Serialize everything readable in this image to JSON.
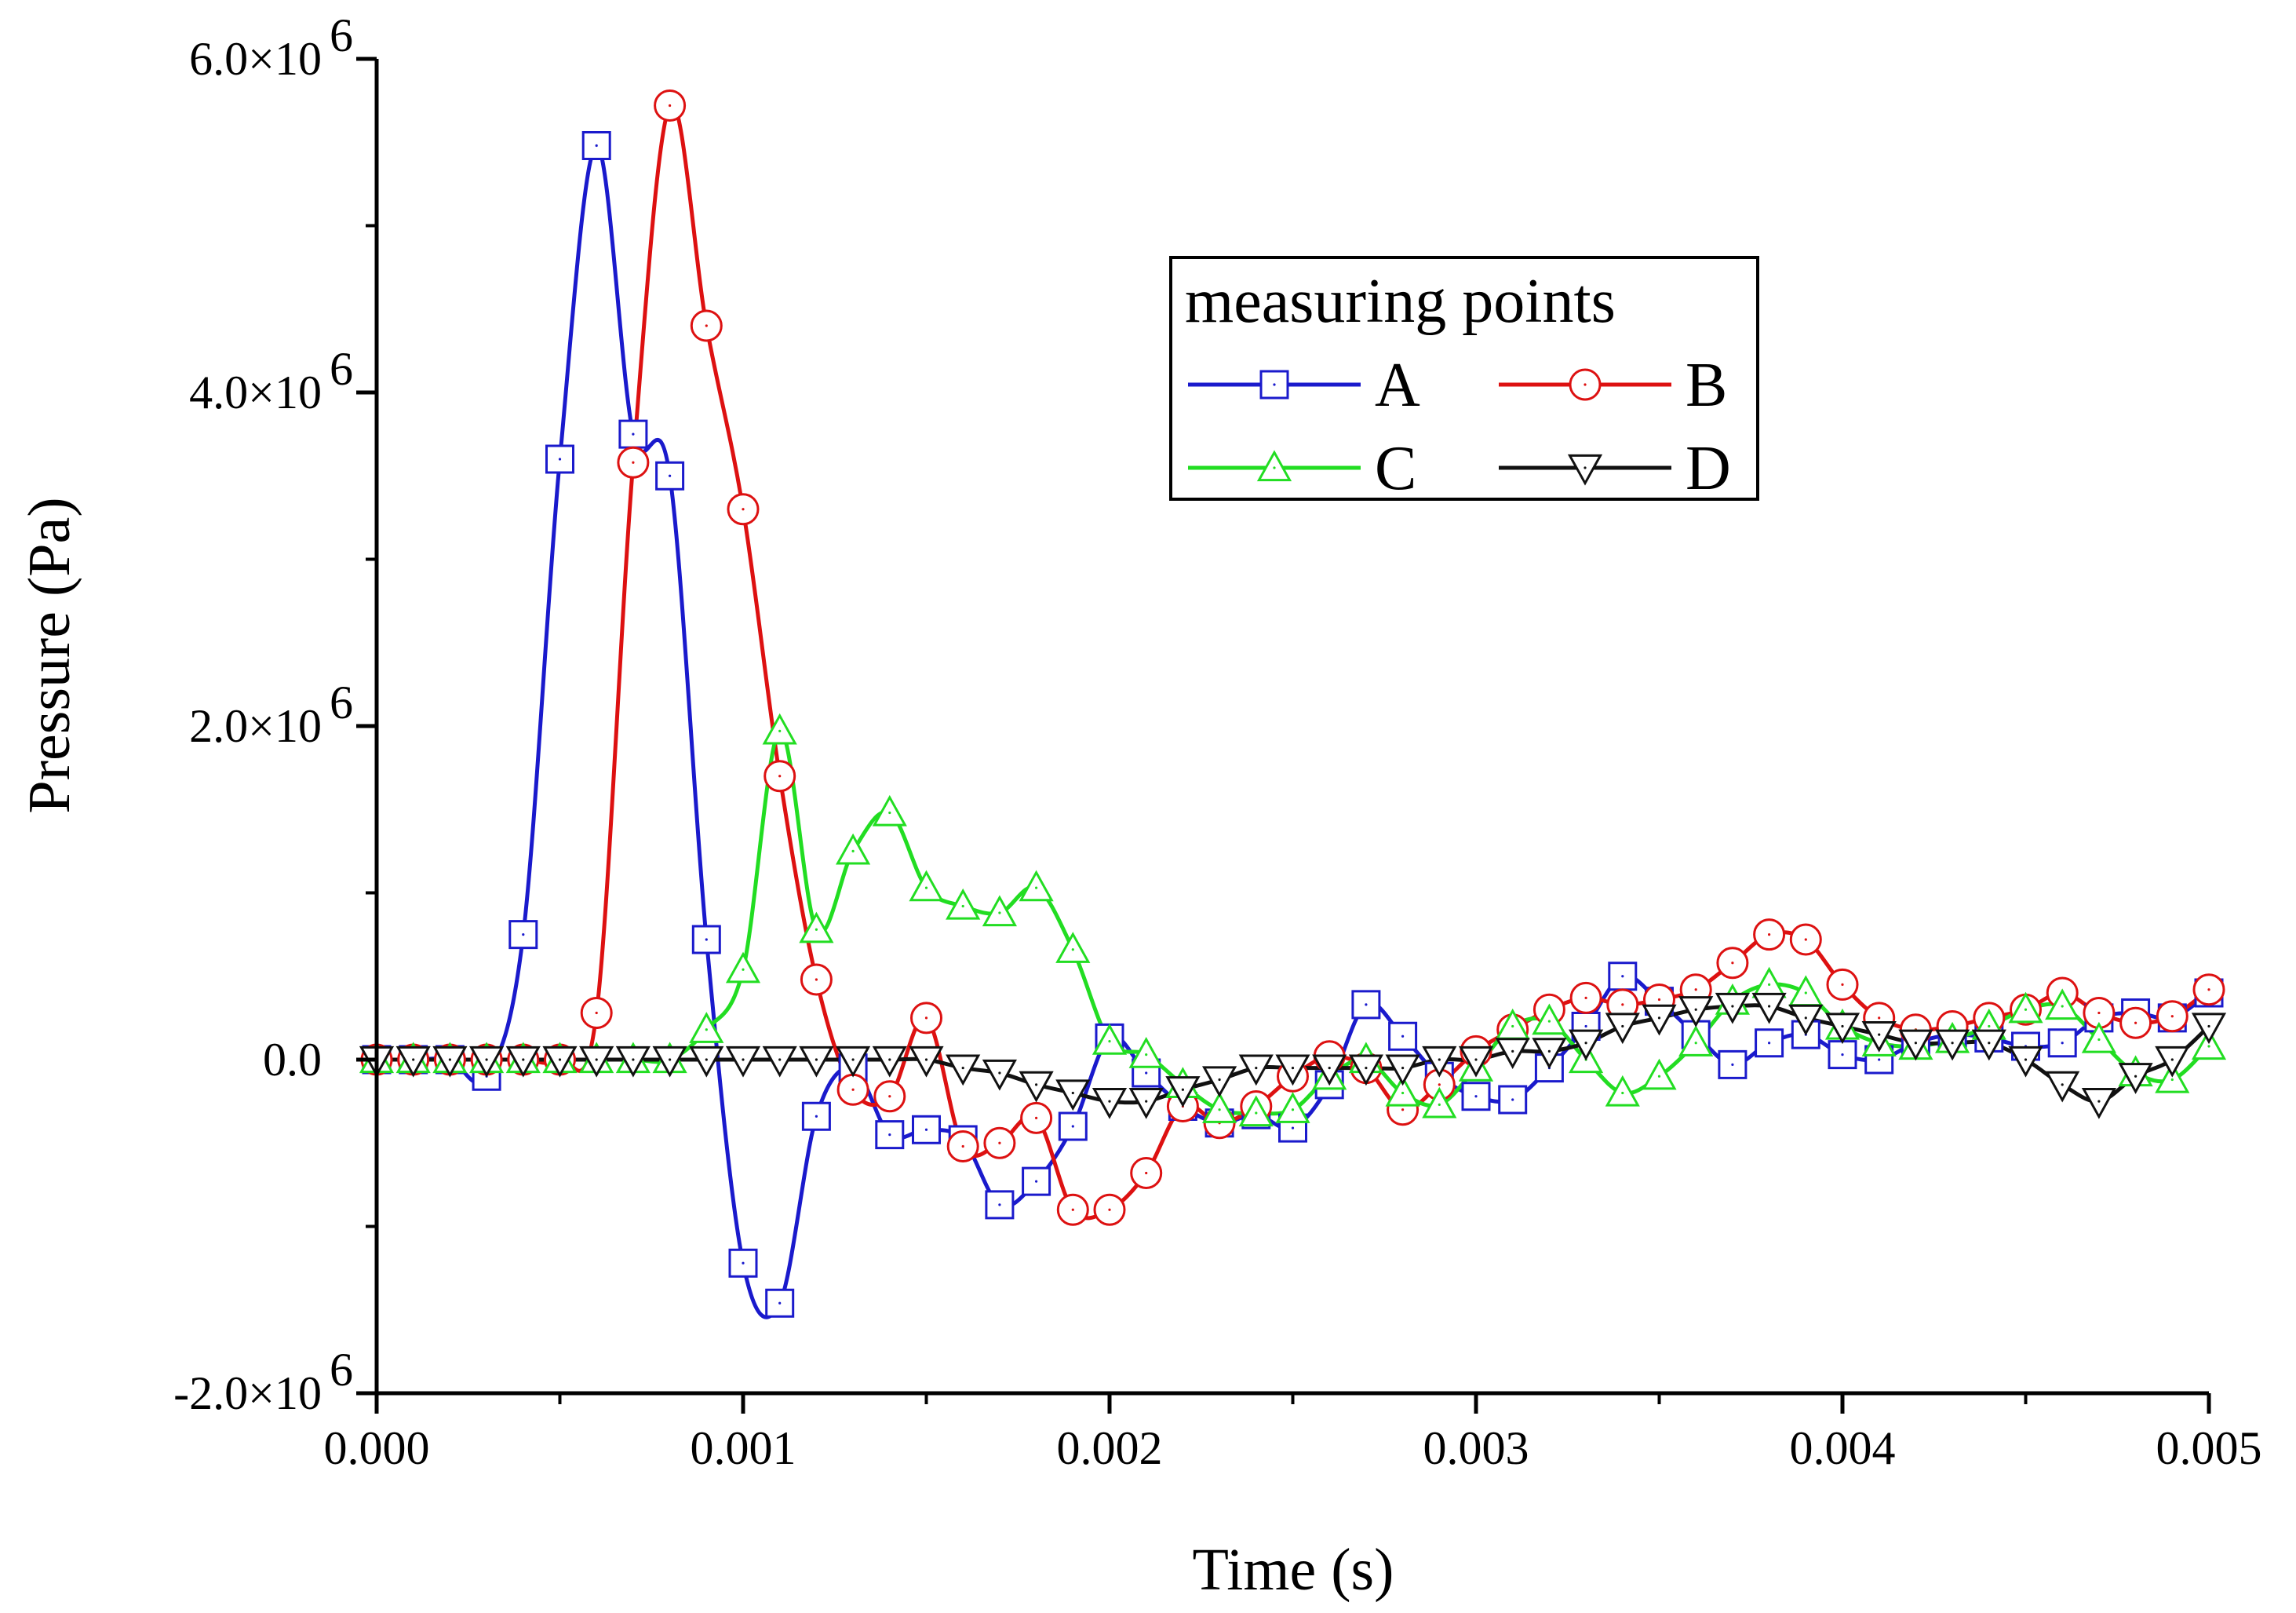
{
  "chart_data": {
    "type": "line",
    "title": "",
    "xlabel": "Time (s)",
    "ylabel": "Pressure (Pa)",
    "xlim": [
      0,
      0.005
    ],
    "ylim": [
      -2000000,
      6000000
    ],
    "x_ticks": [
      0,
      0.001,
      0.002,
      0.003,
      0.004,
      0.005
    ],
    "x_tick_labels": [
      "0.000",
      "0.001",
      "0.002",
      "0.003",
      "0.004",
      "0.005"
    ],
    "y_ticks": [
      -2000000,
      0,
      2000000,
      4000000,
      6000000
    ],
    "y_tick_labels": [
      {
        "mantissa": "-2.0×10",
        "exp": "6"
      },
      {
        "mantissa": "0.0",
        "exp": ""
      },
      {
        "mantissa": "2.0×10",
        "exp": "6"
      },
      {
        "mantissa": "4.0×10",
        "exp": "6"
      },
      {
        "mantissa": "6.0×10",
        "exp": "6"
      }
    ],
    "legend": {
      "title": "measuring points",
      "placement": "top-right"
    },
    "grid": false,
    "series": [
      {
        "name": "A",
        "color": "#1a1acc",
        "marker": "square",
        "x": [
          0,
          0.0001,
          0.0002,
          0.0003,
          0.0004,
          0.0005,
          0.0006,
          0.0007,
          0.0008,
          0.0009,
          0.001,
          0.0011,
          0.0012,
          0.0013,
          0.0014,
          0.0015,
          0.0016,
          0.0017,
          0.0018,
          0.0019,
          0.002,
          0.0021,
          0.0022,
          0.0023,
          0.0024,
          0.0025,
          0.0026,
          0.0027,
          0.0028,
          0.0029,
          0.003,
          0.0031,
          0.0032,
          0.0033,
          0.0034,
          0.0035,
          0.0036,
          0.0037,
          0.0038,
          0.0039,
          0.004,
          0.0041,
          0.0042,
          0.0043,
          0.0044,
          0.0045,
          0.0046,
          0.0047,
          0.0048,
          0.0049,
          0.005
        ],
        "y": [
          0,
          0,
          0,
          -100000,
          750000,
          3600000,
          5480000,
          3750000,
          3500000,
          720000,
          -1220000,
          -1460000,
          -340000,
          -50000,
          -450000,
          -420000,
          -480000,
          -870000,
          -730000,
          -400000,
          130000,
          -80000,
          -280000,
          -380000,
          -330000,
          -410000,
          -150000,
          330000,
          140000,
          -100000,
          -220000,
          -240000,
          -50000,
          200000,
          500000,
          350000,
          150000,
          -30000,
          100000,
          150000,
          30000,
          0,
          100000,
          150000,
          130000,
          80000,
          100000,
          250000,
          280000,
          250000,
          400000
        ]
      },
      {
        "name": "B",
        "color": "#dd1111",
        "marker": "circle",
        "x": [
          0,
          0.0001,
          0.0002,
          0.0003,
          0.0004,
          0.0005,
          0.0006,
          0.0007,
          0.0008,
          0.0009,
          0.001,
          0.0011,
          0.0012,
          0.0013,
          0.0014,
          0.0015,
          0.0016,
          0.0017,
          0.0018,
          0.0019,
          0.002,
          0.0021,
          0.0022,
          0.0023,
          0.0024,
          0.0025,
          0.0026,
          0.0027,
          0.0028,
          0.0029,
          0.003,
          0.0031,
          0.0032,
          0.0033,
          0.0034,
          0.0035,
          0.0036,
          0.0037,
          0.0038,
          0.0039,
          0.004,
          0.0041,
          0.0042,
          0.0043,
          0.0044,
          0.0045,
          0.0046,
          0.0047,
          0.0048,
          0.0049,
          0.005
        ],
        "y": [
          0,
          0,
          0,
          0,
          0,
          0,
          280000,
          3580000,
          5720000,
          4400000,
          3300000,
          1700000,
          480000,
          -180000,
          -220000,
          250000,
          -520000,
          -500000,
          -350000,
          -900000,
          -900000,
          -680000,
          -280000,
          -380000,
          -280000,
          -100000,
          20000,
          -50000,
          -300000,
          -150000,
          50000,
          180000,
          300000,
          370000,
          330000,
          360000,
          420000,
          580000,
          750000,
          720000,
          450000,
          250000,
          180000,
          200000,
          250000,
          300000,
          400000,
          280000,
          220000,
          260000,
          420000
        ]
      },
      {
        "name": "C",
        "color": "#22dd22",
        "marker": "triangle-up",
        "x": [
          0,
          0.0001,
          0.0002,
          0.0003,
          0.0004,
          0.0005,
          0.0006,
          0.0007,
          0.0008,
          0.0009,
          0.001,
          0.0011,
          0.0012,
          0.0013,
          0.0014,
          0.0015,
          0.0016,
          0.0017,
          0.0018,
          0.0019,
          0.002,
          0.0021,
          0.0022,
          0.0023,
          0.0024,
          0.0025,
          0.0026,
          0.0027,
          0.0028,
          0.0029,
          0.003,
          0.0031,
          0.0032,
          0.0033,
          0.0034,
          0.0035,
          0.0036,
          0.0037,
          0.0038,
          0.0039,
          0.004,
          0.0041,
          0.0042,
          0.0043,
          0.0044,
          0.0045,
          0.0046,
          0.0047,
          0.0048,
          0.0049,
          0.005
        ],
        "y": [
          0,
          0,
          0,
          0,
          0,
          0,
          0,
          0,
          0,
          180000,
          540000,
          1970000,
          780000,
          1250000,
          1480000,
          1030000,
          920000,
          880000,
          1030000,
          660000,
          110000,
          30000,
          -150000,
          -300000,
          -320000,
          -300000,
          -100000,
          0,
          -200000,
          -270000,
          -50000,
          200000,
          230000,
          0,
          -200000,
          -100000,
          100000,
          350000,
          450000,
          400000,
          200000,
          100000,
          80000,
          120000,
          200000,
          300000,
          320000,
          120000,
          -80000,
          -120000,
          80000
        ]
      },
      {
        "name": "D",
        "color": "#111111",
        "marker": "triangle-down",
        "x": [
          0,
          0.0001,
          0.0002,
          0.0003,
          0.0004,
          0.0005,
          0.0006,
          0.0007,
          0.0008,
          0.0009,
          0.001,
          0.0011,
          0.0012,
          0.0013,
          0.0014,
          0.0015,
          0.0016,
          0.0017,
          0.0018,
          0.0019,
          0.002,
          0.0021,
          0.0022,
          0.0023,
          0.0024,
          0.0025,
          0.0026,
          0.0027,
          0.0028,
          0.0029,
          0.003,
          0.0031,
          0.0032,
          0.0033,
          0.0034,
          0.0035,
          0.0036,
          0.0037,
          0.0038,
          0.0039,
          0.004,
          0.0041,
          0.0042,
          0.0043,
          0.0044,
          0.0045,
          0.0046,
          0.0047,
          0.0048,
          0.0049,
          0.005
        ],
        "y": [
          0,
          0,
          0,
          0,
          0,
          0,
          0,
          0,
          0,
          0,
          0,
          0,
          0,
          0,
          0,
          0,
          -50000,
          -80000,
          -150000,
          -200000,
          -250000,
          -250000,
          -180000,
          -120000,
          -50000,
          -50000,
          -50000,
          -50000,
          -50000,
          0,
          0,
          50000,
          50000,
          100000,
          200000,
          250000,
          300000,
          320000,
          320000,
          250000,
          200000,
          150000,
          100000,
          100000,
          100000,
          0,
          -150000,
          -250000,
          -100000,
          0,
          200000
        ]
      }
    ]
  }
}
